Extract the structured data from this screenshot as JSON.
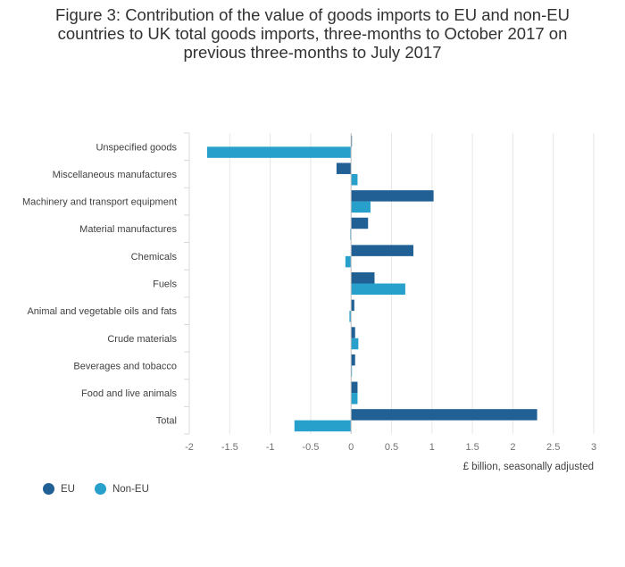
{
  "title_lines": [
    "Figure 3: Contribution of the value of goods imports to EU and non-EU",
    "countries to UK total goods imports, three-months to October 2017 on",
    "previous three-months to July 2017"
  ],
  "chart_data": {
    "type": "bar",
    "orientation": "horizontal",
    "title": "Figure 3: Contribution of the value of goods imports to EU and non-EU countries to UK total goods imports, three-months to October 2017 on previous three-months to July 2017",
    "xlabel": "£ billion, seasonally adjusted",
    "ylabel": "",
    "xlim": [
      -2,
      3
    ],
    "xticks": [
      -2,
      -1.5,
      -1,
      -0.5,
      0,
      0.5,
      1,
      1.5,
      2,
      2.5,
      3
    ],
    "xtick_labels": [
      "-2",
      "-1.5",
      "-1",
      "-0.5",
      "0",
      "0.5",
      "1",
      "1.5",
      "2",
      "2.5",
      "3"
    ],
    "grid": true,
    "legend_position": "bottom-left",
    "categories": [
      "Unspecified goods",
      "Miscellaneous manufactures",
      "Machinery and transport equipment",
      "Material manufactures",
      "Chemicals",
      "Fuels",
      "Animal and vegetable oils and fats",
      "Crude materials",
      "Beverages and tobacco",
      "Food and live animals",
      "Total"
    ],
    "series": [
      {
        "name": "EU",
        "color": "#206095",
        "values": [
          0.01,
          -0.18,
          1.02,
          0.21,
          0.77,
          0.29,
          0.04,
          0.05,
          0.05,
          0.08,
          2.3
        ]
      },
      {
        "name": "Non-EU",
        "color": "#27a0cc",
        "values": [
          -1.78,
          0.08,
          0.24,
          -0.01,
          -0.07,
          0.67,
          -0.02,
          0.09,
          0.01,
          0.08,
          -0.7
        ]
      }
    ]
  }
}
